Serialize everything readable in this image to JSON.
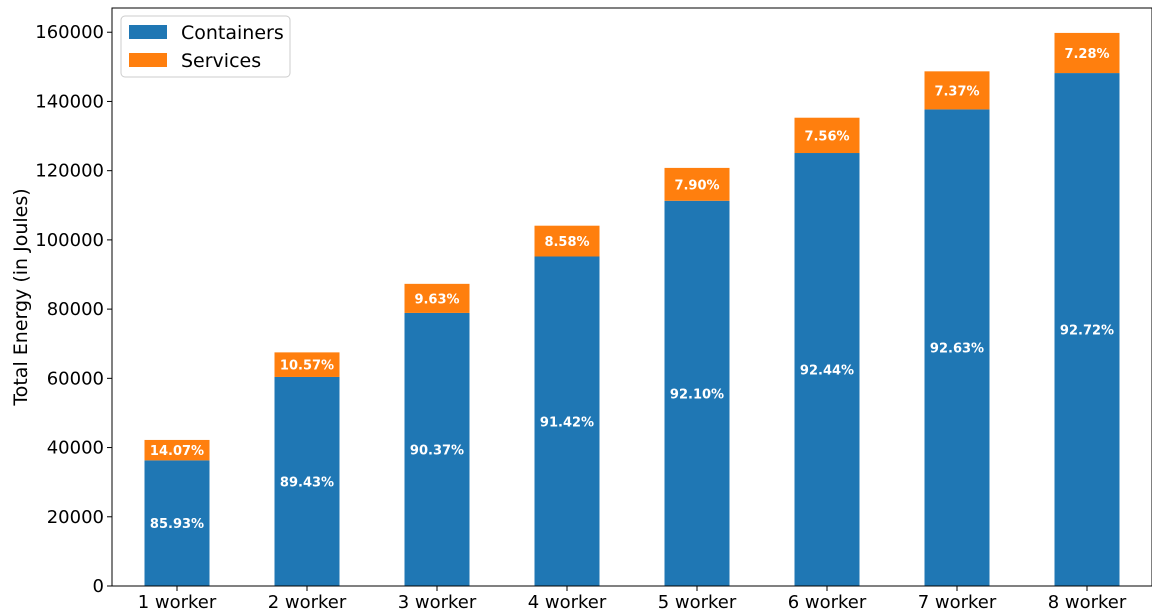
{
  "chart_data": {
    "type": "bar",
    "stacked": true,
    "categories": [
      "1 worker",
      "2 worker",
      "3 worker",
      "4 worker",
      "5 worker",
      "6 worker",
      "7 worker",
      "8 worker"
    ],
    "series": [
      {
        "name": "Containers",
        "color": "#1f77b4",
        "values": [
          36300,
          60400,
          78900,
          95200,
          111300,
          125100,
          137700,
          148200
        ],
        "labels": [
          "85.93%",
          "89.43%",
          "90.37%",
          "91.42%",
          "92.10%",
          "92.44%",
          "92.63%",
          "92.72%"
        ]
      },
      {
        "name": "Services",
        "color": "#ff7f0e",
        "values": [
          5900,
          7100,
          8400,
          8900,
          9500,
          10200,
          11000,
          11600
        ],
        "labels": [
          "14.07%",
          "10.57%",
          "9.63%",
          "8.58%",
          "7.90%",
          "7.56%",
          "7.37%",
          "7.28%"
        ]
      }
    ],
    "ylabel": "Total Energy (in Joules)",
    "xlabel": "",
    "ylim": [
      0,
      167000
    ],
    "yticks": [
      0,
      20000,
      40000,
      60000,
      80000,
      100000,
      120000,
      140000,
      160000
    ],
    "legend_position": "top-left",
    "grid": false
  }
}
